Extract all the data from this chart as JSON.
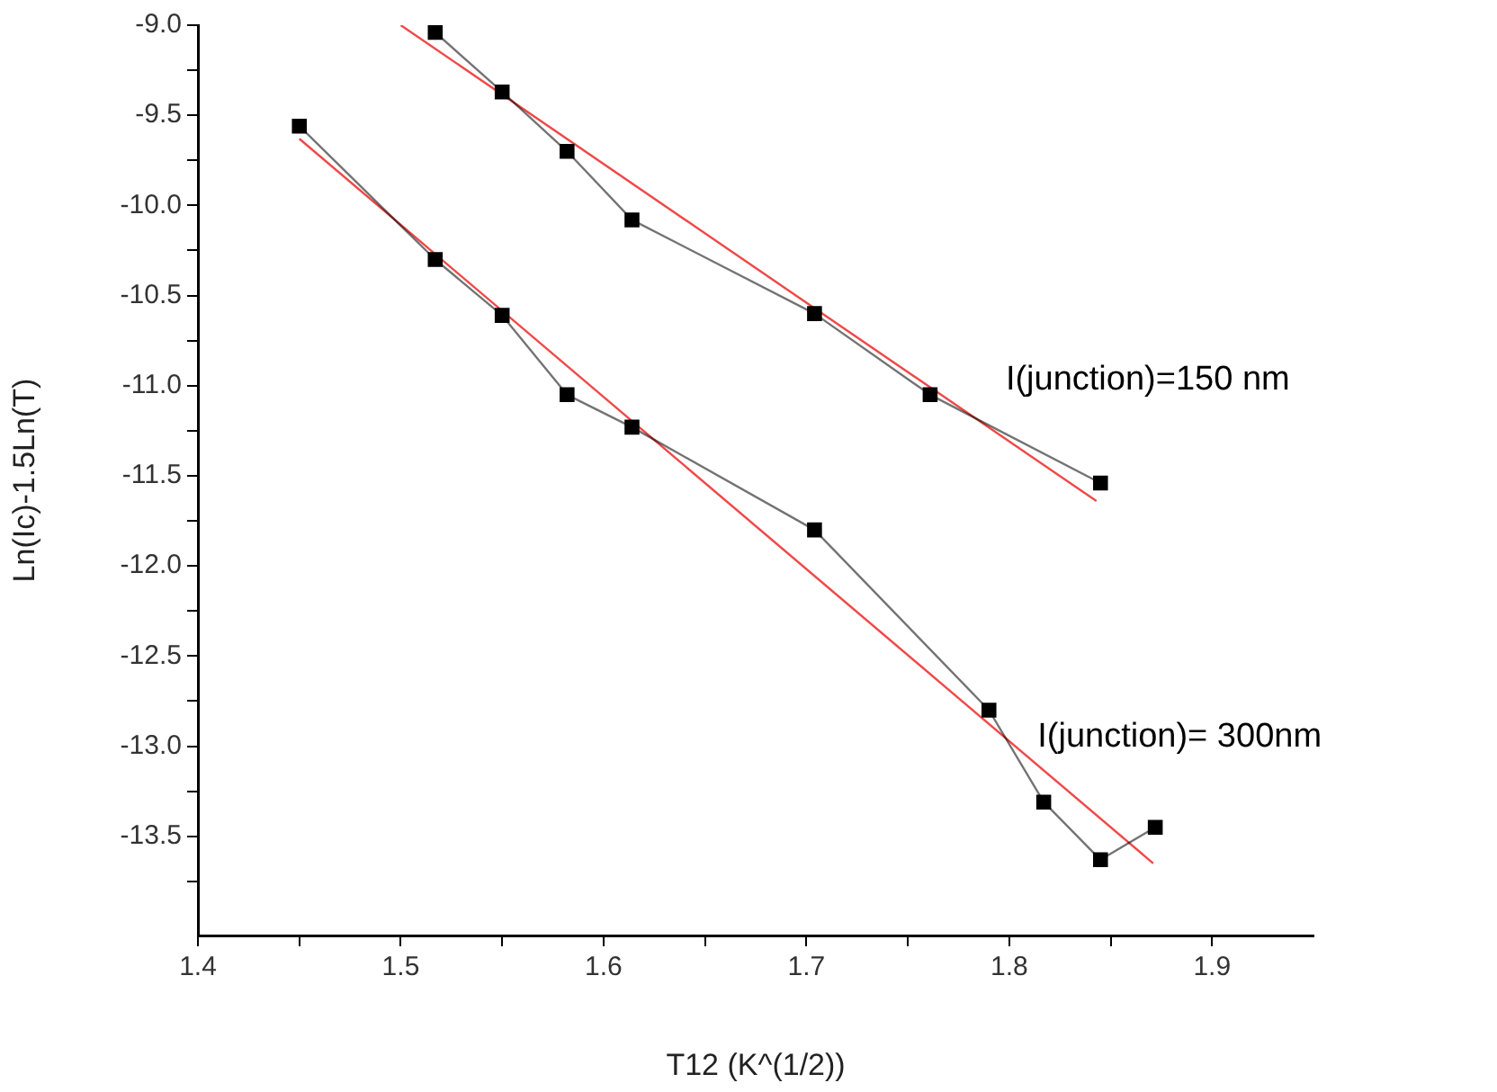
{
  "chart_data": {
    "type": "line",
    "xlabel": "T12 (K^(1/2))",
    "ylabel": "Ln(Ic)-1.5Ln(T)",
    "xlim": [
      1.4,
      1.95
    ],
    "ylim": [
      -14.05,
      -9.0
    ],
    "xticks": [
      1.4,
      {
        "value": 1.45,
        "label": null
      },
      1.5,
      {
        "value": 1.55,
        "label": null
      },
      1.6,
      {
        "value": 1.65,
        "label": null
      },
      1.7,
      {
        "value": 1.75,
        "label": null
      },
      1.8,
      {
        "value": 1.85,
        "label": null
      },
      1.9
    ],
    "yticks": [
      {
        "value": -9.0,
        "label": "-9.0"
      },
      {
        "value": -9.25,
        "label": null
      },
      -9.5,
      {
        "value": -9.75,
        "label": null
      },
      {
        "value": -10.0,
        "label": "-10.0"
      },
      {
        "value": -10.25,
        "label": null
      },
      -10.5,
      {
        "value": -10.75,
        "label": null
      },
      {
        "value": -11.0,
        "label": "-11.0"
      },
      {
        "value": -11.25,
        "label": null
      },
      -11.5,
      {
        "value": -11.75,
        "label": null
      },
      {
        "value": -12.0,
        "label": "-12.0"
      },
      {
        "value": -12.25,
        "label": null
      },
      -12.5,
      {
        "value": -12.75,
        "label": null
      },
      {
        "value": -13.0,
        "label": "-13.0"
      },
      {
        "value": -13.25,
        "label": null
      },
      -13.5,
      {
        "value": -13.75,
        "label": null
      }
    ],
    "grid": false,
    "legend": false,
    "marker": "square",
    "series": [
      {
        "name": "I(junction)=150 nm",
        "color": "#000000",
        "x": [
          1.517,
          1.55,
          1.582,
          1.614,
          1.704,
          1.761,
          1.845
        ],
        "values": [
          -9.04,
          -9.37,
          -9.7,
          -10.08,
          -10.6,
          -11.05,
          -11.54
        ]
      },
      {
        "name": "I(junction)= 300nm",
        "color": "#000000",
        "x": [
          1.45,
          1.517,
          1.55,
          1.582,
          1.614,
          1.704,
          1.79,
          1.817,
          1.845,
          1.872
        ],
        "values": [
          -9.56,
          -10.3,
          -10.61,
          -11.05,
          -11.23,
          -11.8,
          -12.8,
          -13.31,
          -13.63,
          -13.45
        ]
      },
      {
        "type": "line",
        "marker": "none",
        "color": "#f04848",
        "x": [
          1.5,
          1.843
        ],
        "values": [
          -9.0,
          -11.64
        ]
      },
      {
        "type": "line",
        "marker": "none",
        "color": "#f04848",
        "x": [
          1.45,
          1.871
        ],
        "values": [
          -9.63,
          -13.65
        ]
      }
    ]
  }
}
